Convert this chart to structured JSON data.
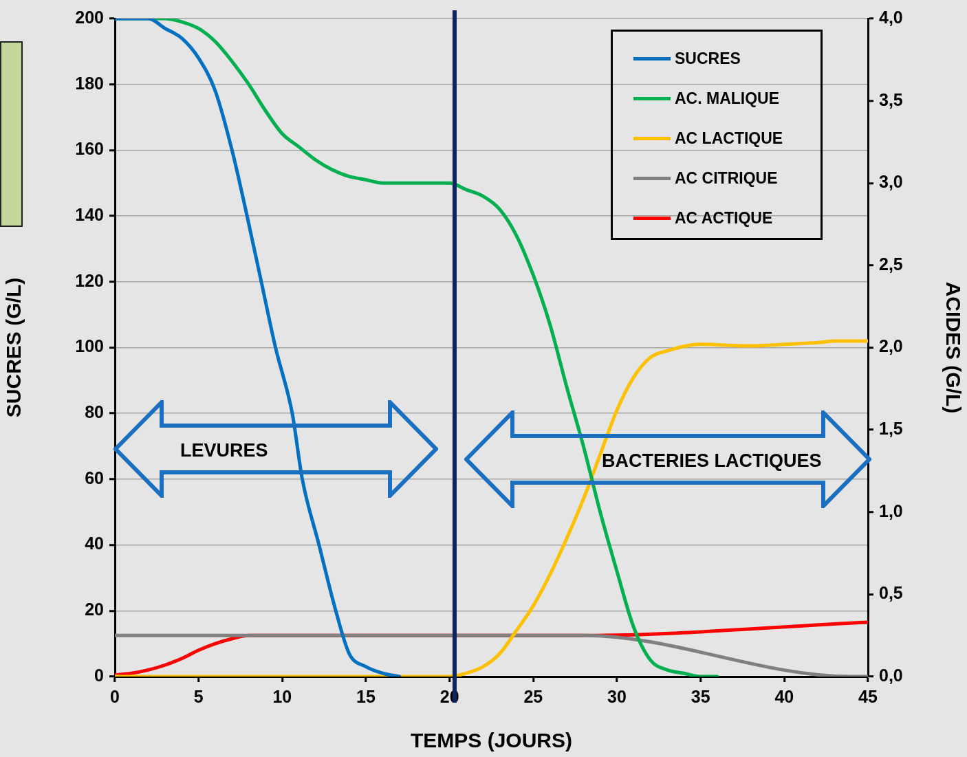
{
  "chart_data": {
    "type": "line",
    "xlabel": "TEMPS (JOURS)",
    "ylabel": "SUCRES (G/L)",
    "y2label": "ACIDES (G/L)",
    "xlim": [
      0,
      45
    ],
    "xticks": [
      0,
      5,
      10,
      15,
      20,
      25,
      30,
      35,
      40,
      45
    ],
    "ylim": [
      0,
      200
    ],
    "yticks": [
      0,
      20,
      40,
      60,
      80,
      100,
      120,
      140,
      160,
      180,
      200
    ],
    "y2lim": [
      0,
      4
    ],
    "y2ticks": [
      {
        "value": 0,
        "label": "0,0"
      },
      {
        "value": 0.5,
        "label": "0,5"
      },
      {
        "value": 1,
        "label": "1,0"
      },
      {
        "value": 1.5,
        "label": "1,5"
      },
      {
        "value": 2,
        "label": "2,0"
      },
      {
        "value": 2.5,
        "label": "2,5"
      },
      {
        "value": 3,
        "label": "3,0"
      },
      {
        "value": 3.5,
        "label": "3,5"
      },
      {
        "value": 4,
        "label": "4,0"
      }
    ],
    "grid": "y",
    "legend": "top right",
    "marker": "none",
    "line_style": "solid",
    "series": [
      {
        "name": "SUCRES",
        "color": "#0070c0",
        "axis": "y",
        "x": [
          0,
          2,
          3,
          4,
          5,
          6,
          7,
          7.9,
          8.75,
          9.6,
          10.6,
          11.2,
          12.2,
          13.2,
          14,
          15,
          16,
          17
        ],
        "values": [
          200,
          200,
          197,
          194,
          188,
          178,
          160,
          140,
          120,
          100,
          80,
          60,
          40,
          20,
          7,
          3,
          1,
          0
        ]
      },
      {
        "name": "AC. MALIQUE",
        "color": "#00b050",
        "axis": "y2",
        "x": [
          0,
          3,
          4,
          5,
          6,
          7,
          8,
          9,
          10,
          11,
          12,
          13,
          14,
          15,
          16,
          20,
          21,
          22,
          23,
          24,
          25,
          26,
          27,
          28,
          29,
          30,
          31,
          32,
          33,
          34,
          35,
          36
        ],
        "values": [
          4.0,
          4.0,
          3.98,
          3.94,
          3.86,
          3.74,
          3.6,
          3.44,
          3.3,
          3.22,
          3.14,
          3.08,
          3.04,
          3.02,
          3.0,
          3.0,
          2.96,
          2.92,
          2.84,
          2.68,
          2.44,
          2.14,
          1.76,
          1.4,
          1.0,
          0.64,
          0.3,
          0.1,
          0.04,
          0.02,
          0,
          0
        ]
      },
      {
        "name": "AC LACTIQUE",
        "color": "#ffc000",
        "axis": "y2",
        "x": [
          0,
          20,
          21,
          22,
          23,
          24,
          25,
          26,
          27,
          28,
          29,
          30,
          31,
          32,
          33,
          35,
          38,
          40,
          42,
          43,
          45
        ],
        "values": [
          0,
          0,
          0.02,
          0.06,
          0.14,
          0.28,
          0.43,
          0.62,
          0.84,
          1.08,
          1.35,
          1.62,
          1.82,
          1.94,
          1.98,
          2.02,
          2.01,
          2.02,
          2.03,
          2.04,
          2.04
        ]
      },
      {
        "name": "AC CITRIQUE",
        "color": "#808080",
        "axis": "y2",
        "x": [
          0,
          28,
          44,
          45
        ],
        "values": [
          0.25,
          0.25,
          0,
          0
        ]
      },
      {
        "name": "AC ACTIQUE",
        "color": "#ff0000",
        "axis": "y2",
        "x": [
          0,
          1,
          2,
          3,
          4,
          5,
          6,
          7,
          8,
          9,
          28,
          45
        ],
        "values": [
          0.01,
          0.02,
          0.04,
          0.07,
          0.11,
          0.16,
          0.2,
          0.23,
          0.25,
          0.25,
          0.25,
          0.33
        ]
      }
    ],
    "ref_lines": [
      {
        "axis": "x",
        "value": 20.3,
        "color": "#0d2460"
      }
    ],
    "annotations": [
      "LEVURES",
      "BACTERIES LACTIQUES"
    ]
  }
}
